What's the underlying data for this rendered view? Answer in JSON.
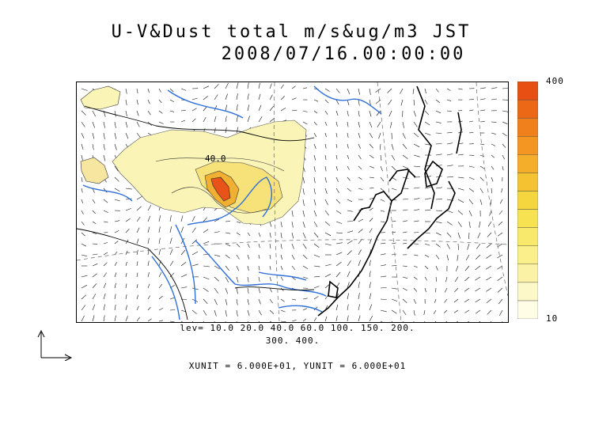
{
  "title_line1": "U-V&Dust total m/s&ug/m3 JST",
  "title_line2": "2008/07/16.00:00:00",
  "contour_label": "40.0",
  "lev_line1": "lev= 10.0 20.0 40.0 60.0 100. 150. 200.",
  "lev_line2": "300. 400.",
  "unit_line": "XUNIT = 6.000E+01, YUNIT = 6.000E+01",
  "colorbar": {
    "max_label": "400",
    "min_label": "10",
    "colors": [
      "#fffde6",
      "#fdf8c8",
      "#fbf2a6",
      "#faef8a",
      "#f8e86c",
      "#f7e252",
      "#f6d63f",
      "#f5c332",
      "#f4ae2a",
      "#f39722",
      "#f0801c",
      "#ec6716",
      "#e84f12"
    ]
  },
  "colors": {
    "coast": "#000000",
    "river": "#2f6fd8",
    "dust_low": "#faf4b6",
    "dust_mid": "#f7e27a",
    "dust_high": "#f2b032",
    "dust_peak": "#e8531a"
  }
}
